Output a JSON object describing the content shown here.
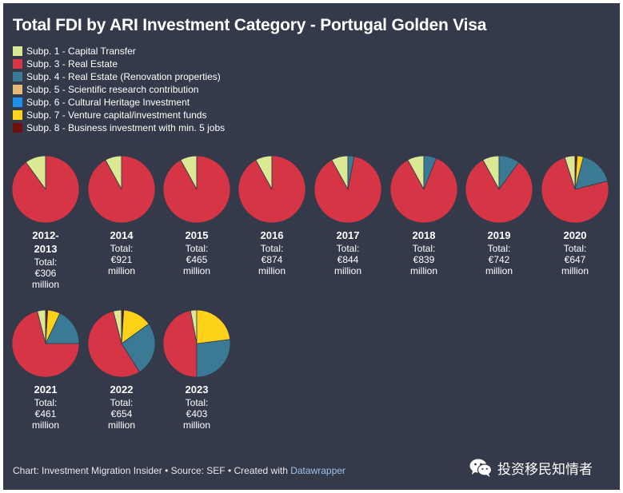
{
  "title": "Total FDI by ARI Investment Category - Portugal Golden Visa",
  "legend": [
    {
      "label": "Subp. 1 - Capital Transfer",
      "color": "#dbe894"
    },
    {
      "label": "Subp. 3 - Real Estate",
      "color": "#d63545"
    },
    {
      "label": "Subp. 4 - Real Estate (Renovation properties)",
      "color": "#3a7a94"
    },
    {
      "label": "Subp. 5 - Scientific research contribution",
      "color": "#e8b87a"
    },
    {
      "label": "Subp. 6 - Cultural Heritage Investment",
      "color": "#1e90e8"
    },
    {
      "label": "Subp. 7 - Venture capital/investment funds",
      "color": "#ffd21a"
    },
    {
      "label": "Subp. 8 - Business investment with min. 5 jobs",
      "color": "#6e1010"
    }
  ],
  "chart_data": {
    "type": "pie",
    "title": "Total FDI by ARI Investment Category - Portugal Golden Visa",
    "series_names": [
      "Subp. 1 - Capital Transfer",
      "Subp. 3 - Real Estate",
      "Subp. 4 - Real Estate (Renovation properties)",
      "Subp. 5 - Scientific research contribution",
      "Subp. 6 - Cultural Heritage Investment",
      "Subp. 7 - Venture capital/investment funds",
      "Subp. 8 - Business investment with min. 5 jobs"
    ],
    "pies": [
      {
        "year": "2012-2013",
        "total": "Total: €306 million",
        "shares_pct": [
          10,
          90,
          0,
          0,
          0,
          0,
          0
        ]
      },
      {
        "year": "2014",
        "total": "Total: €921 million",
        "shares_pct": [
          8,
          92,
          0,
          0,
          0,
          0,
          0
        ]
      },
      {
        "year": "2015",
        "total": "Total: €465 million",
        "shares_pct": [
          8,
          92,
          0,
          0,
          0,
          0,
          0
        ]
      },
      {
        "year": "2016",
        "total": "Total: €874 million",
        "shares_pct": [
          8,
          92,
          0,
          0,
          0,
          0,
          0
        ]
      },
      {
        "year": "2017",
        "total": "Total: €844 million",
        "shares_pct": [
          8,
          89,
          3,
          0,
          0,
          0,
          0
        ]
      },
      {
        "year": "2018",
        "total": "Total: €839 million",
        "shares_pct": [
          8,
          86,
          6,
          0,
          0,
          0,
          0
        ]
      },
      {
        "year": "2019",
        "total": "Total: €742 million",
        "shares_pct": [
          8,
          82,
          10,
          0,
          0,
          0,
          0
        ]
      },
      {
        "year": "2020",
        "total": "Total: €647 million",
        "shares_pct": [
          5,
          74,
          17,
          0,
          0,
          3,
          1
        ]
      },
      {
        "year": "2021",
        "total": "Total: €461 million",
        "shares_pct": [
          4,
          71,
          18,
          0,
          0,
          6,
          1
        ]
      },
      {
        "year": "2022",
        "total": "Total: €654 million",
        "shares_pct": [
          4,
          55,
          26,
          0,
          0,
          14,
          1
        ]
      },
      {
        "year": "2023",
        "total": "Total: €403 million",
        "shares_pct": [
          3,
          47,
          27,
          0,
          0,
          23,
          0
        ]
      }
    ]
  },
  "footer": {
    "prefix": "Chart: Investment Migration Insider • Source: SEF • Created with ",
    "link": "Datawrapper"
  },
  "watermark": {
    "text": "投资移民知情者",
    "icon": "wechat-icon"
  }
}
